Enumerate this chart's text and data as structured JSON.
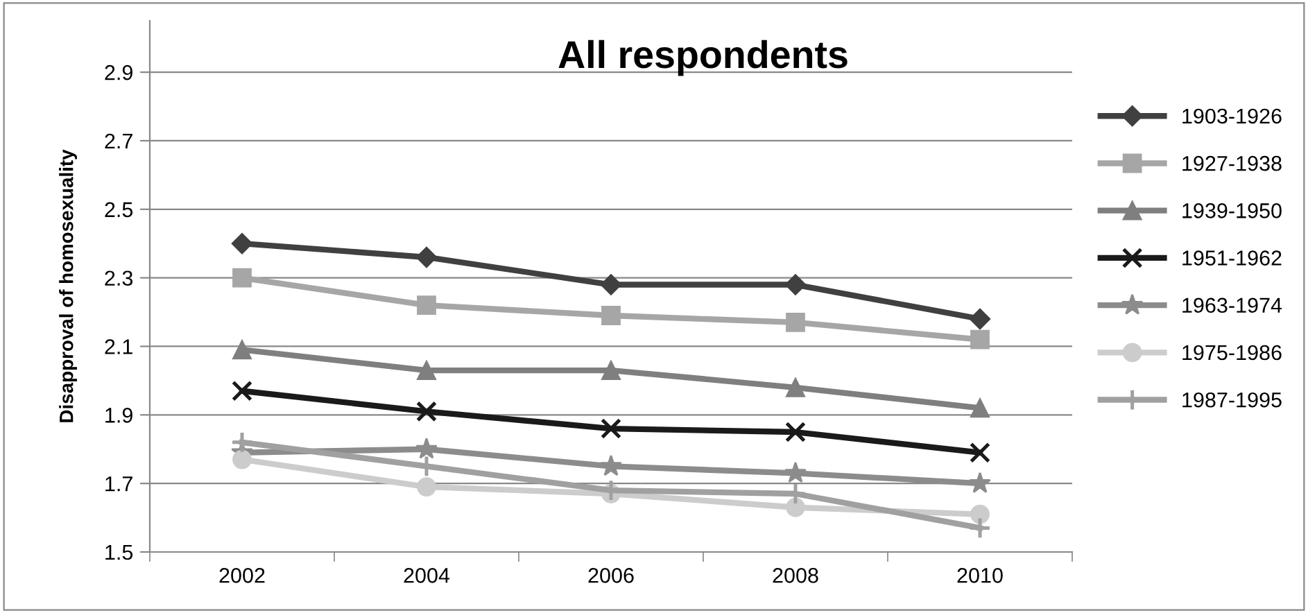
{
  "chart_data": {
    "type": "line",
    "title": "All respondents",
    "ylabel": "Disapproval of homosexuality",
    "categories": [
      "2002",
      "2004",
      "2006",
      "2008",
      "2010"
    ],
    "series": [
      {
        "name": "1903-1926",
        "color": "#404040",
        "marker": "diamond",
        "values": [
          2.4,
          2.36,
          2.28,
          2.28,
          2.18
        ]
      },
      {
        "name": "1927-1938",
        "color": "#a6a6a6",
        "marker": "square",
        "values": [
          2.3,
          2.22,
          2.19,
          2.17,
          2.12
        ]
      },
      {
        "name": "1939-1950",
        "color": "#7f7f7f",
        "marker": "triangle",
        "values": [
          2.09,
          2.03,
          2.03,
          1.98,
          1.92
        ]
      },
      {
        "name": "1951-1962",
        "color": "#1a1a1a",
        "marker": "cross",
        "values": [
          1.97,
          1.91,
          1.86,
          1.85,
          1.79
        ]
      },
      {
        "name": "1963-1974",
        "color": "#8c8c8c",
        "marker": "star",
        "values": [
          1.79,
          1.8,
          1.75,
          1.73,
          1.7
        ]
      },
      {
        "name": "1975-1986",
        "color": "#cccccc",
        "marker": "circle",
        "values": [
          1.77,
          1.69,
          1.67,
          1.63,
          1.61
        ]
      },
      {
        "name": "1987-1995",
        "color": "#a0a0a0",
        "marker": "plus",
        "values": [
          1.82,
          1.75,
          1.68,
          1.67,
          1.57
        ]
      }
    ],
    "ylim": [
      1.5,
      3.05
    ],
    "yticks": [
      {
        "value": 1.5,
        "label": "1.5"
      },
      {
        "value": 1.7,
        "label": "1.7"
      },
      {
        "value": 1.9,
        "label": "1.9"
      },
      {
        "value": 2.1,
        "label": "2.1"
      },
      {
        "value": 2.3,
        "label": "2.3"
      },
      {
        "value": 2.5,
        "label": "2.5"
      },
      {
        "value": 2.7,
        "label": "2.7"
      },
      {
        "value": 2.9,
        "label": "2.9"
      }
    ],
    "grid": "y",
    "legend": "right",
    "line_style": "solid"
  }
}
